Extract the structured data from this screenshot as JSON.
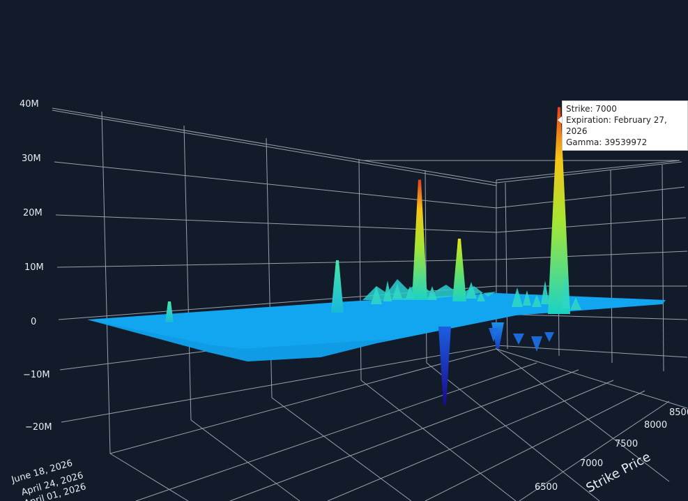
{
  "chart_data": {
    "type": "surface",
    "title": "",
    "colors": {
      "background": "#121b29",
      "grid": "#d0d4da",
      "surface_base": "#12a6f0"
    },
    "zaxis": {
      "ticks": [
        "40M",
        "30M",
        "20M",
        "10M",
        "0",
        "−10M",
        "−20M"
      ],
      "range": [
        -20000000,
        40000000
      ]
    },
    "strike_axis": {
      "title": "Strike Price",
      "ticks": [
        "6500",
        "7000",
        "7500",
        "8000",
        "8500"
      ]
    },
    "expiration_axis": {
      "ticks": [
        "June 18, 2026",
        "April 24, 2026",
        "April 01, 2026"
      ]
    },
    "peaks": [
      {
        "strike": 5600,
        "expiration": "near",
        "gamma": 4000000
      },
      {
        "strike": 6000,
        "expiration": "near",
        "gamma": 10000000
      },
      {
        "strike": 6500,
        "expiration": "mid",
        "gamma": 23000000
      },
      {
        "strike": 6600,
        "expiration": "mid",
        "gamma": 12000000
      },
      {
        "strike": 6450,
        "expiration": "mid",
        "gamma": -15000000
      },
      {
        "strike": 6900,
        "expiration": "mid",
        "gamma": -5000000
      },
      {
        "strike": 7000,
        "expiration": "February 27, 2026",
        "gamma": 39539972
      }
    ],
    "tooltip": {
      "strike_line": "Strike: 7000",
      "expiration_line": "Expiration: February 27, 2026",
      "gamma_line": "Gamma: 39539972"
    }
  }
}
